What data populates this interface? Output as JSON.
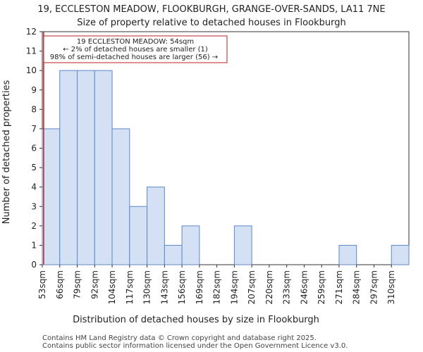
{
  "chart_data": {
    "type": "bar",
    "title_line1": "19, ECCLESTON MEADOW, FLOOKBURGH, GRANGE-OVER-SANDS, LA11 7NE",
    "title_line2": "Size of property relative to detached houses in Flookburgh",
    "xlabel": "Distribution of detached houses by size in Flookburgh",
    "ylabel": "Number of detached properties",
    "categories": [
      "53sqm",
      "66sqm",
      "79sqm",
      "92sqm",
      "104sqm",
      "117sqm",
      "130sqm",
      "143sqm",
      "156sqm",
      "169sqm",
      "182sqm",
      "194sqm",
      "207sqm",
      "220sqm",
      "233sqm",
      "246sqm",
      "259sqm",
      "271sqm",
      "284sqm",
      "297sqm",
      "310sqm"
    ],
    "values": [
      7,
      10,
      10,
      10,
      7,
      3,
      4,
      1,
      2,
      0,
      0,
      2,
      0,
      0,
      0,
      0,
      0,
      1,
      0,
      0,
      1
    ],
    "yticks": [
      0,
      1,
      2,
      3,
      4,
      5,
      6,
      7,
      8,
      9,
      10,
      11,
      12
    ],
    "ylim": [
      0,
      12
    ],
    "bar_color": "#d4e0f4",
    "bar_edge_color": "#5f88c8",
    "marker_color": "#bb2222",
    "marker_value_sqm": 54,
    "annotation": {
      "line1": "19 ECCLESTON MEADOW: 54sqm",
      "line2": "← 2% of detached houses are smaller (1)",
      "line3": "98% of semi-detached houses are larger (56) →"
    },
    "footer_line1": "Contains HM Land Registry data © Crown copyright and database right 2025.",
    "footer_line2": "Contains public sector information licensed under the Open Government Licence v3.0."
  }
}
